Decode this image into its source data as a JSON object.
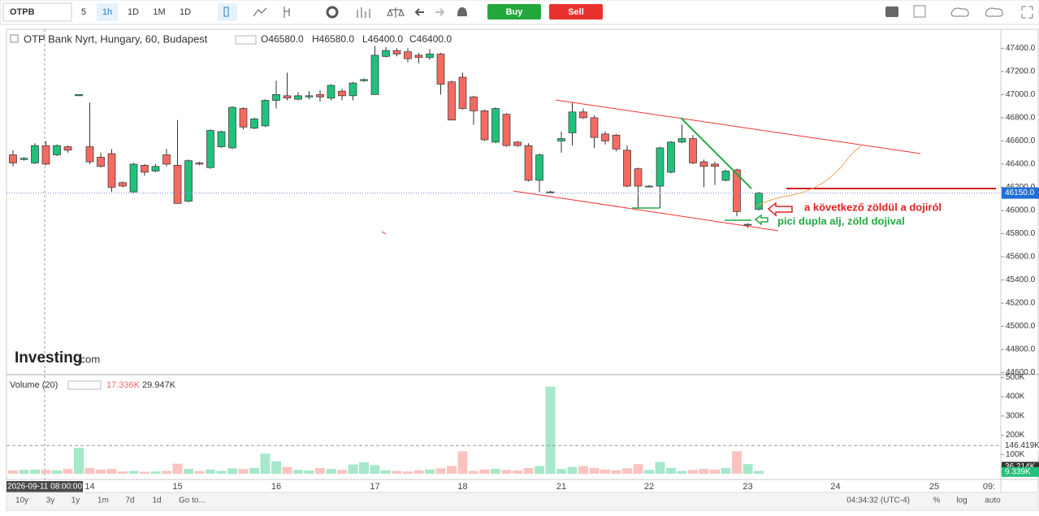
{
  "toolbar": {
    "symbol": "OTPB",
    "intervals": [
      "5",
      "1h",
      "1D",
      "1M",
      "1D"
    ],
    "buy": "Buy",
    "sell": "Sell"
  },
  "chart_data": {
    "type": "candlestick",
    "title": "OTP Bank Nyrt, Hungary, 60, Budapest",
    "ohlc_readout": [
      "O46580.0",
      "H46580.0",
      "L46400.0",
      "C46400.0"
    ],
    "up_color": "#21c17c",
    "down_color": "#f46a61",
    "categories": [
      null,
      null,
      null,
      null,
      null,
      null,
      null,
      "14",
      null,
      null,
      null,
      null,
      null,
      null,
      null,
      "15",
      null,
      null,
      null,
      null,
      null,
      null,
      null,
      null,
      "16",
      null,
      null,
      null,
      null,
      null,
      null,
      null,
      null,
      "17",
      null,
      null,
      null,
      null,
      null,
      null,
      null,
      "18",
      null,
      null,
      null,
      null,
      null,
      null,
      null,
      null,
      "21",
      null,
      null,
      null,
      null,
      null,
      null,
      null,
      "22",
      null,
      null,
      null,
      null,
      null,
      null,
      null,
      null,
      "23",
      null,
      null,
      null,
      null,
      null,
      null,
      null,
      "24",
      null,
      null,
      null,
      null,
      null,
      null,
      null,
      null,
      "25",
      null,
      null,
      null,
      null,
      "09:"
    ],
    "open": [
      46480,
      46440,
      46410,
      46560,
      46480,
      46550,
      46990,
      46550,
      46460,
      46490,
      46240,
      46160,
      46390,
      46340,
      46480,
      46390,
      46080,
      46410,
      46370,
      46550,
      46540,
      46880,
      46710,
      46730,
      46950,
      46990,
      46960,
      46980,
      47000,
      46970,
      47030,
      46990,
      47120,
      47000,
      47330,
      47380,
      47370,
      47340,
      47320,
      47350,
      47110,
      47150,
      46980,
      46860,
      46590,
      46830,
      46590,
      46560,
      46260,
      46160,
      46600,
      46670,
      46850,
      46800,
      46660,
      46650,
      46520,
      46360,
      46210,
      46210,
      46330,
      46590,
      46620,
      46420,
      46400,
      46260,
      46350,
      45880,
      46010,
      null,
      null,
      null,
      null,
      null,
      null,
      null,
      null,
      null,
      null,
      null,
      null,
      null,
      null,
      null,
      null,
      null,
      null,
      null,
      null,
      null
    ],
    "high": [
      46520,
      46460,
      46580,
      46600,
      46570,
      46560,
      47000,
      46930,
      46500,
      46530,
      46250,
      46410,
      46400,
      46400,
      46530,
      46780,
      46440,
      46420,
      46700,
      46690,
      46900,
      46890,
      46800,
      46960,
      47120,
      47190,
      47020,
      47030,
      47040,
      47090,
      47050,
      47110,
      47140,
      47420,
      47410,
      47400,
      47400,
      47360,
      47390,
      47360,
      47120,
      47190,
      46990,
      46870,
      46890,
      46840,
      46600,
      46580,
      46490,
      46170,
      46680,
      46930,
      46880,
      46820,
      46680,
      46660,
      46560,
      46370,
      46220,
      46550,
      46600,
      46740,
      46650,
      46440,
      46420,
      46350,
      46360,
      45890,
      46160,
      null,
      null,
      null,
      null,
      null,
      null,
      null,
      null,
      null,
      null,
      null,
      null,
      null,
      null,
      null,
      null,
      null,
      null,
      null,
      null,
      null
    ],
    "low": [
      46380,
      46430,
      46400,
      46390,
      46470,
      46500,
      46990,
      46400,
      46370,
      46160,
      46200,
      46150,
      46300,
      46330,
      46380,
      46060,
      46070,
      46390,
      46360,
      46540,
      46530,
      46700,
      46700,
      46720,
      46880,
      46950,
      46950,
      46960,
      46940,
      46950,
      46950,
      46950,
      47110,
      47000,
      47320,
      47330,
      47280,
      47270,
      47300,
      47000,
      46780,
      46870,
      46740,
      46600,
      46580,
      46550,
      46550,
      46250,
      46160,
      46150,
      46500,
      46560,
      46790,
      46540,
      46570,
      46510,
      46200,
      46020,
      46200,
      46020,
      46320,
      46580,
      46400,
      46200,
      46220,
      46250,
      45950,
      45850,
      46000,
      null,
      null,
      null,
      null,
      null,
      null,
      null,
      null,
      null,
      null,
      null,
      null,
      null,
      null,
      null,
      null,
      null,
      null,
      null,
      null,
      null
    ],
    "close": [
      46410,
      46450,
      46560,
      46400,
      46560,
      46520,
      47000,
      46420,
      46380,
      46200,
      46210,
      46400,
      46330,
      46380,
      46400,
      46060,
      46430,
      46400,
      46690,
      46680,
      46890,
      46720,
      46790,
      46950,
      47000,
      46970,
      46990,
      46990,
      46980,
      47080,
      46990,
      47100,
      47130,
      47340,
      47380,
      47350,
      47310,
      47320,
      47350,
      47090,
      46780,
      46880,
      46860,
      46610,
      46880,
      46560,
      46560,
      46260,
      46480,
      46160,
      46620,
      46850,
      46800,
      46630,
      46600,
      46530,
      46210,
      46210,
      46210,
      46540,
      46590,
      46620,
      46410,
      46380,
      46380,
      46340,
      45990,
      45880,
      46150,
      null,
      null,
      null,
      null,
      null,
      null,
      null,
      null,
      null,
      null,
      null,
      null,
      null,
      null,
      null,
      null,
      null,
      null,
      null,
      null,
      null
    ],
    "ylim": [
      44590,
      47550
    ],
    "yticks": [
      {
        "value": 44600,
        "label": "44600.0"
      },
      {
        "value": 44800,
        "label": "44800.0"
      },
      {
        "value": 45000,
        "label": "45000.0"
      },
      {
        "value": 45200,
        "label": "45200.0"
      },
      {
        "value": 45400,
        "label": "45400.0"
      },
      {
        "value": 45600,
        "label": "45600.0"
      },
      {
        "value": 45800,
        "label": "45800.0"
      },
      {
        "value": 46000,
        "label": "46000.0"
      },
      {
        "value": 46200,
        "label": "46200.0"
      },
      {
        "value": 46400,
        "label": "46400.0"
      },
      {
        "value": 46600,
        "label": "46600.0"
      },
      {
        "value": 46800,
        "label": "46800.0"
      },
      {
        "value": 47000,
        "label": "47000.0"
      },
      {
        "value": 47200,
        "label": "47200.0"
      },
      {
        "value": 47400,
        "label": "47400.0"
      }
    ],
    "last_price": {
      "value": 46150,
      "label": "46150.0"
    },
    "crosshair_time": "2026-09-11 08:00:00",
    "annotations": [
      "a következő zöldül a dojiról",
      "pici dupla alj, zöld dojival"
    ],
    "volume": {
      "name": "Volume (20)",
      "readouts": [
        "17.336K",
        "29.947K"
      ],
      "values": [
        18000,
        20000,
        22000,
        20000,
        18000,
        25000,
        135000,
        30000,
        22000,
        25000,
        12000,
        15000,
        10000,
        12000,
        15000,
        52000,
        25000,
        14000,
        22000,
        15000,
        28000,
        25000,
        30000,
        104000,
        65000,
        35000,
        20000,
        18000,
        30000,
        25000,
        20000,
        48000,
        60000,
        45000,
        18000,
        15000,
        12000,
        18000,
        22000,
        28000,
        40000,
        117000,
        15000,
        22000,
        25000,
        20000,
        18000,
        30000,
        40000,
        452000,
        25000,
        35000,
        40000,
        30000,
        22000,
        18000,
        28000,
        50000,
        20000,
        61000,
        30000,
        15000,
        20000,
        25000,
        22000,
        30000,
        117000,
        50000,
        15000,
        null,
        null,
        null,
        null,
        null,
        null,
        null,
        null,
        null,
        null,
        null,
        null,
        null,
        null,
        null,
        null,
        null,
        null,
        null,
        null,
        null
      ],
      "up_color": "#a6e8cb",
      "down_color": "#fbc3bf",
      "ylim": [
        0,
        510000
      ],
      "yticks": [
        {
          "value": 100000,
          "label": "100K"
        },
        {
          "value": 200000,
          "label": "200K"
        },
        {
          "value": 300000,
          "label": "300K"
        },
        {
          "value": 400000,
          "label": "400K"
        },
        {
          "value": 500000,
          "label": "500K"
        }
      ],
      "levels": [
        {
          "value": 146419,
          "label": "146.419K"
        },
        {
          "value": 36214,
          "label": "36.214K"
        },
        {
          "value": 9339,
          "label": "9.339K"
        }
      ]
    }
  },
  "logo": {
    "brand": "Investing",
    "suffix": ".com"
  },
  "footer": {
    "ranges": [
      "10y",
      "3y",
      "1y",
      "1m",
      "7d",
      "1d"
    ],
    "goto": "Go to...",
    "clock": "04:34:32 (UTC-4)",
    "options": [
      "%",
      "log",
      "auto"
    ]
  }
}
